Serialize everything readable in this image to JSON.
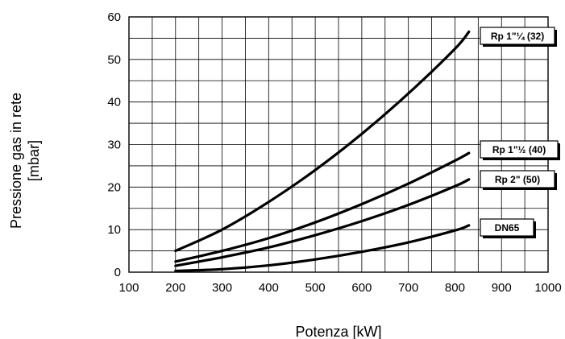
{
  "chart_data": {
    "type": "line",
    "title": "",
    "xlabel": "Potenza [kW]",
    "ylabel_lines": [
      "Pressione gas in rete",
      "[mbar]"
    ],
    "xlim": [
      100,
      1000
    ],
    "ylim": [
      0,
      60
    ],
    "x_ticks": [
      "100",
      "200",
      "300",
      "400",
      "500",
      "600",
      "700",
      "800",
      "900",
      "1000"
    ],
    "y_ticks": [
      "0",
      "10",
      "20",
      "30",
      "40",
      "50",
      "60"
    ],
    "grid": true,
    "series": [
      {
        "name": "Rp 1\"¼ (32)",
        "x": [
          200,
          300,
          400,
          500,
          600,
          700,
          800,
          830
        ],
        "y": [
          5,
          10,
          16.5,
          24,
          32.5,
          42,
          52.5,
          56.5
        ]
      },
      {
        "name": "Rp 1\"½ (40)",
        "x": [
          200,
          300,
          400,
          500,
          600,
          700,
          800,
          830
        ],
        "y": [
          2.5,
          5,
          8,
          11.7,
          16,
          20.8,
          26.2,
          28
        ]
      },
      {
        "name": "Rp 2\" (50)",
        "x": [
          200,
          300,
          400,
          500,
          600,
          700,
          800,
          830
        ],
        "y": [
          1.5,
          3.5,
          5.8,
          8.7,
          12,
          15.8,
          20.2,
          21.8
        ]
      },
      {
        "name": "DN65",
        "x": [
          200,
          300,
          400,
          500,
          600,
          700,
          800,
          830
        ],
        "y": [
          0.3,
          0.7,
          1.6,
          3,
          4.8,
          7,
          9.8,
          11
        ]
      }
    ],
    "legend_placement": "right of curve ends"
  }
}
